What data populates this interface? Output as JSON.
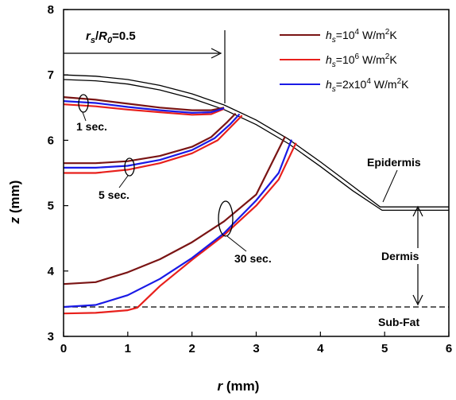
{
  "chart_data": {
    "type": "line",
    "xlabel": {
      "var": "r",
      "unit": " (mm)"
    },
    "ylabel": {
      "var": "z",
      "unit": " (mm)"
    },
    "xlim": [
      0,
      6
    ],
    "ylim": [
      3,
      8
    ],
    "xticks": [
      "0",
      "1",
      "2",
      "3",
      "4",
      "5",
      "6"
    ],
    "yticks": [
      "3",
      "4",
      "5",
      "6",
      "7",
      "8"
    ],
    "grid": false,
    "legend_position": "top-right",
    "series": [
      {
        "name": "h_s=10^4 W/m^2K",
        "color": "#7a1414",
        "curves": {
          "1 sec.": [
            [
              0,
              6.66
            ],
            [
              0.5,
              6.62
            ],
            [
              1,
              6.56
            ],
            [
              1.5,
              6.5
            ],
            [
              2,
              6.46
            ],
            [
              2.3,
              6.46
            ],
            [
              2.5,
              6.5
            ]
          ],
          "5 sec.": [
            [
              0,
              5.65
            ],
            [
              0.5,
              5.65
            ],
            [
              1,
              5.68
            ],
            [
              1.5,
              5.76
            ],
            [
              2,
              5.9
            ],
            [
              2.3,
              6.05
            ],
            [
              2.55,
              6.28
            ],
            [
              2.68,
              6.41
            ]
          ],
          "30 sec.": [
            [
              0,
              3.8
            ],
            [
              0.5,
              3.83
            ],
            [
              1,
              3.98
            ],
            [
              1.5,
              4.18
            ],
            [
              2,
              4.44
            ],
            [
              2.5,
              4.76
            ],
            [
              3,
              5.17
            ],
            [
              3.45,
              6.06
            ]
          ]
        }
      },
      {
        "name": "h_s=10^6 W/m^2K",
        "color": "#e8201c",
        "curves": {
          "1 sec.": [
            [
              0,
              6.55
            ],
            [
              0.5,
              6.52
            ],
            [
              1,
              6.47
            ],
            [
              1.5,
              6.43
            ],
            [
              2,
              6.39
            ],
            [
              2.3,
              6.4
            ],
            [
              2.5,
              6.48
            ]
          ],
          "5 sec.": [
            [
              0,
              5.5
            ],
            [
              0.5,
              5.5
            ],
            [
              1,
              5.55
            ],
            [
              1.5,
              5.65
            ],
            [
              2,
              5.8
            ],
            [
              2.4,
              6.0
            ],
            [
              2.6,
              6.2
            ],
            [
              2.78,
              6.38
            ]
          ],
          "30 sec.": [
            [
              0,
              3.35
            ],
            [
              0.5,
              3.36
            ],
            [
              1,
              3.4
            ],
            [
              1.15,
              3.44
            ],
            [
              1.5,
              3.77
            ],
            [
              2,
              4.17
            ],
            [
              2.5,
              4.55
            ],
            [
              3,
              5.0
            ],
            [
              3.35,
              5.4
            ],
            [
              3.62,
              5.96
            ]
          ]
        }
      },
      {
        "name": "h_s=2x10^4 W/m^2K",
        "color": "#1a1ae6",
        "curves": {
          "1 sec.": [
            [
              0,
              6.6
            ],
            [
              0.5,
              6.57
            ],
            [
              1,
              6.51
            ],
            [
              1.5,
              6.46
            ],
            [
              2,
              6.42
            ],
            [
              2.3,
              6.43
            ],
            [
              2.5,
              6.49
            ]
          ],
          "5 sec.": [
            [
              0,
              5.58
            ],
            [
              0.5,
              5.58
            ],
            [
              1,
              5.61
            ],
            [
              1.5,
              5.7
            ],
            [
              2,
              5.85
            ],
            [
              2.35,
              6.03
            ],
            [
              2.6,
              6.25
            ],
            [
              2.74,
              6.4
            ]
          ],
          "30 sec.": [
            [
              0,
              3.45
            ],
            [
              0.5,
              3.48
            ],
            [
              1,
              3.63
            ],
            [
              1.5,
              3.88
            ],
            [
              2,
              4.2
            ],
            [
              2.5,
              4.58
            ],
            [
              3,
              5.08
            ],
            [
              3.35,
              5.5
            ],
            [
              3.55,
              6.01
            ]
          ]
        }
      }
    ],
    "boundaries": {
      "epidermis_outer": [
        [
          0,
          7.0
        ],
        [
          0.5,
          6.98
        ],
        [
          1,
          6.93
        ],
        [
          1.5,
          6.84
        ],
        [
          2,
          6.71
        ],
        [
          2.5,
          6.54
        ],
        [
          3,
          6.31
        ],
        [
          3.5,
          6.02
        ],
        [
          4,
          5.67
        ],
        [
          4.5,
          5.3
        ],
        [
          4.93,
          4.98
        ],
        [
          6,
          4.98
        ]
      ],
      "epidermis_inner": [
        [
          0,
          6.93
        ],
        [
          0.5,
          6.91
        ],
        [
          1,
          6.86
        ],
        [
          1.5,
          6.77
        ],
        [
          2,
          6.64
        ],
        [
          2.5,
          6.47
        ],
        [
          3,
          6.24
        ],
        [
          3.5,
          5.95
        ],
        [
          4,
          5.6
        ],
        [
          4.5,
          5.23
        ],
        [
          4.96,
          4.93
        ],
        [
          6,
          4.93
        ]
      ],
      "subfat_dashed": [
        [
          0,
          3.45
        ],
        [
          6,
          3.45
        ]
      ]
    },
    "annotations": [
      {
        "var": "r",
        "sub": "s",
        "sep": "/",
        "var2": "R",
        "sub2": "0",
        "value": "=0.5"
      },
      "1 sec.",
      "5 sec.",
      "30 sec.",
      "Epidermis",
      "Dermis",
      "Sub-Fat"
    ],
    "legend_parts": [
      {
        "var": "h",
        "sub": "s",
        "base": "=10",
        "exp": "4",
        "unit": " W/m",
        "unit_exp": "2",
        "unit_tail": "K"
      },
      {
        "var": "h",
        "sub": "s",
        "base": "=10",
        "exp": "6",
        "unit": " W/m",
        "unit_exp": "2",
        "unit_tail": "K"
      },
      {
        "var": "h",
        "sub": "s",
        "base": "=2x10",
        "exp": "4",
        "unit": " W/m",
        "unit_exp": "2",
        "unit_tail": "K"
      }
    ]
  }
}
